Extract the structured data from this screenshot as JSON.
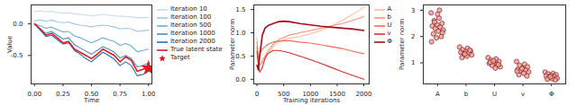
{
  "chart_data": [
    {
      "type": "line",
      "x_label": "Time",
      "y_label": "Value",
      "xlim": [
        -0.03,
        1.03
      ],
      "xticks": [
        {
          "value": 0,
          "label": "0.00"
        },
        {
          "value": 0.25,
          "label": "0.25"
        },
        {
          "value": 0.5,
          "label": "0.50"
        },
        {
          "value": 0.75,
          "label": "0.75"
        },
        {
          "value": 1,
          "label": "1.00"
        }
      ],
      "ylim": [
        -0.95,
        0.3
      ],
      "yticks": [
        {
          "value": -0.5,
          "label": "-0.5"
        },
        {
          "value": 0,
          "label": "0.0"
        }
      ],
      "legend": "right",
      "x": [
        0,
        0.05,
        0.1,
        0.15,
        0.2,
        0.25,
        0.3,
        0.35,
        0.4,
        0.45,
        0.5,
        0.55,
        0.6,
        0.65,
        0.7,
        0.75,
        0.8,
        0.85,
        0.9,
        0.95,
        1
      ],
      "series": [
        {
          "name": "Iteration 10",
          "color": "#c6dbef",
          "values": [
            0.2,
            0.2,
            0.19,
            0.2,
            0.18,
            0.17,
            0.18,
            0.16,
            0.15,
            0.14,
            0.13,
            0.14,
            0.15,
            0.14,
            0.13,
            0.12,
            0.12,
            0.11,
            0.1,
            0.1,
            0.1
          ]
        },
        {
          "name": "Iteration 100",
          "color": "#9ecae1",
          "values": [
            0.05,
            0.06,
            0.04,
            0.06,
            0.03,
            0.02,
            0.03,
            0.0,
            -0.02,
            -0.03,
            -0.05,
            -0.03,
            -0.02,
            -0.03,
            -0.05,
            -0.08,
            -0.07,
            -0.08,
            -0.12,
            -0.11,
            -0.1
          ]
        },
        {
          "name": "Iteration 500",
          "color": "#6baed6",
          "values": [
            0,
            -0.03,
            -0.07,
            -0.05,
            -0.09,
            -0.13,
            -0.12,
            -0.19,
            -0.22,
            -0.26,
            -0.3,
            -0.26,
            -0.22,
            -0.25,
            -0.28,
            -0.34,
            -0.31,
            -0.35,
            -0.44,
            -0.42,
            -0.4
          ]
        },
        {
          "name": "Iteration 1000",
          "color": "#4292c6",
          "values": [
            0,
            -0.08,
            -0.15,
            -0.12,
            -0.18,
            -0.24,
            -0.22,
            -0.33,
            -0.38,
            -0.43,
            -0.48,
            -0.42,
            -0.36,
            -0.4,
            -0.45,
            -0.54,
            -0.5,
            -0.55,
            -0.68,
            -0.66,
            -0.62
          ]
        },
        {
          "name": "Iteration 2000",
          "color": "#2171b5",
          "values": [
            0,
            -0.1,
            -0.2,
            -0.18,
            -0.25,
            -0.32,
            -0.3,
            -0.42,
            -0.48,
            -0.55,
            -0.6,
            -0.52,
            -0.45,
            -0.5,
            -0.56,
            -0.66,
            -0.6,
            -0.66,
            -0.82,
            -0.8,
            -0.75
          ]
        },
        {
          "name": "True latent state",
          "color": "#e41a1c",
          "values": [
            0,
            -0.08,
            -0.18,
            -0.15,
            -0.22,
            -0.3,
            -0.28,
            -0.4,
            -0.45,
            -0.5,
            -0.55,
            -0.48,
            -0.4,
            -0.45,
            -0.5,
            -0.6,
            -0.52,
            -0.58,
            -0.75,
            -0.72,
            -0.7
          ]
        },
        {
          "name": "Target",
          "type": "scatter",
          "marker": "star",
          "color": "#e41a1c",
          "x": [
            1
          ],
          "values": [
            -0.7
          ]
        }
      ]
    },
    {
      "type": "line",
      "x_label": "Training iterations",
      "y_label": "Parameter norm",
      "xlim": [
        -60,
        2100
      ],
      "xticks": [
        0,
        500,
        1000,
        1500,
        2000
      ],
      "ylim": [
        -0.1,
        1.6
      ],
      "yticks": [
        {
          "value": 0,
          "label": "0.0"
        },
        {
          "value": 0.5,
          "label": "0.5"
        },
        {
          "value": 1,
          "label": "1.0"
        },
        {
          "value": 1.5,
          "label": "1.5"
        }
      ],
      "legend": "right",
      "x": [
        0,
        25,
        50,
        100,
        150,
        200,
        300,
        400,
        500,
        600,
        800,
        1000,
        1200,
        1400,
        1600,
        1800,
        2000
      ],
      "series": [
        {
          "name": "A",
          "color": "#fcbba1",
          "values": [
            0.9,
            0.5,
            0.3,
            0.35,
            0.45,
            0.55,
            0.7,
            0.8,
            0.85,
            0.88,
            0.92,
            0.98,
            1.05,
            1.15,
            1.27,
            1.4,
            1.55
          ]
        },
        {
          "name": "b",
          "color": "#fc9272",
          "values": [
            0.8,
            0.45,
            0.3,
            0.4,
            0.5,
            0.6,
            0.75,
            0.85,
            0.9,
            0.95,
            1.0,
            1.05,
            1.1,
            1.15,
            1.2,
            1.27,
            1.35
          ]
        },
        {
          "name": "U",
          "color": "#fb6a4a",
          "values": [
            0.7,
            0.4,
            0.55,
            0.65,
            0.7,
            0.75,
            0.8,
            0.82,
            0.83,
            0.83,
            0.8,
            0.78,
            0.74,
            0.7,
            0.66,
            0.6,
            0.55
          ]
        },
        {
          "name": "v",
          "color": "#de2d26",
          "values": [
            0.6,
            0.3,
            0.15,
            0.25,
            0.45,
            0.55,
            0.62,
            0.62,
            0.6,
            0.57,
            0.5,
            0.42,
            0.34,
            0.25,
            0.16,
            0.08,
            0.0
          ]
        },
        {
          "name": "Φ",
          "color": "#a50f15",
          "values": [
            0.3,
            0.2,
            0.5,
            0.95,
            1.1,
            1.15,
            1.2,
            1.24,
            1.25,
            1.24,
            1.2,
            1.17,
            1.14,
            1.12,
            1.1,
            1.08,
            1.05
          ]
        }
      ]
    },
    {
      "type": "scatter",
      "y_label": "Parameter norm",
      "color": "#f4a09a",
      "categories": [
        "A",
        "b",
        "U",
        "v",
        "Φ"
      ],
      "ylim": [
        0.2,
        3.2
      ],
      "yticks": [
        1,
        2,
        3
      ],
      "values": [
        [
          2.9,
          2.7,
          2.6,
          2.5,
          2.45,
          2.4,
          2.35,
          2.3,
          2.25,
          2.2,
          2.1,
          2.0,
          1.95,
          1.8,
          3.0,
          2.55,
          2.15,
          2.85
        ],
        [
          1.6,
          1.55,
          1.5,
          1.45,
          1.42,
          1.4,
          1.38,
          1.35,
          1.3,
          1.25,
          1.2,
          1.48,
          1.33
        ],
        [
          1.2,
          1.15,
          1.1,
          1.05,
          1.0,
          0.98,
          0.95,
          0.9,
          0.85,
          0.8,
          1.02,
          0.93,
          1.08
        ],
        [
          1.05,
          0.95,
          0.9,
          0.85,
          0.8,
          0.75,
          0.72,
          0.7,
          0.65,
          0.6,
          0.55,
          0.5,
          0.78,
          0.68
        ],
        [
          0.65,
          0.6,
          0.58,
          0.55,
          0.52,
          0.5,
          0.48,
          0.45,
          0.42,
          0.4,
          0.38,
          0.35,
          0.47
        ]
      ]
    }
  ]
}
